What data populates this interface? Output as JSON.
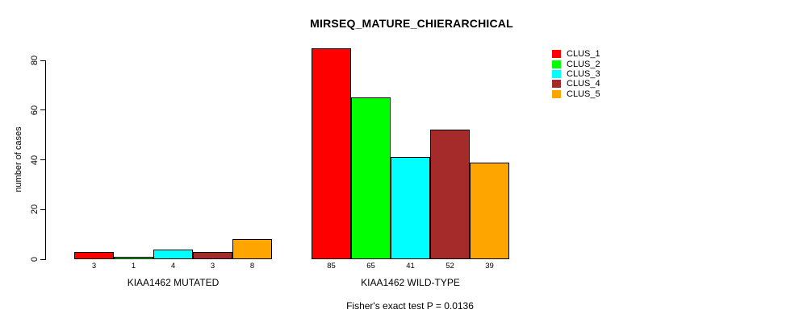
{
  "chart_data": {
    "type": "bar",
    "title": "MIRSEQ_MATURE_CHIERARCHICAL",
    "ylabel": "number of cases",
    "xlabel": "",
    "ylim": [
      0,
      80
    ],
    "yticks": [
      0,
      20,
      40,
      60,
      80
    ],
    "grid": false,
    "legend_position": "right",
    "bar_value_labels": true,
    "categories": [
      "KIAA1462 MUTATED",
      "KIAA1462 WILD-TYPE"
    ],
    "series": [
      {
        "name": "CLUS_1",
        "color": "#ff0000",
        "values": [
          3,
          85
        ]
      },
      {
        "name": "CLUS_2",
        "color": "#00ff00",
        "values": [
          1,
          65
        ]
      },
      {
        "name": "CLUS_3",
        "color": "#00ffff",
        "values": [
          4,
          41
        ]
      },
      {
        "name": "CLUS_4",
        "color": "#a52a2a",
        "values": [
          3,
          52
        ]
      },
      {
        "name": "CLUS_5",
        "color": "#ffa500",
        "values": [
          8,
          39
        ]
      }
    ],
    "annotation": "Fisher's exact test P = 0.0136"
  }
}
